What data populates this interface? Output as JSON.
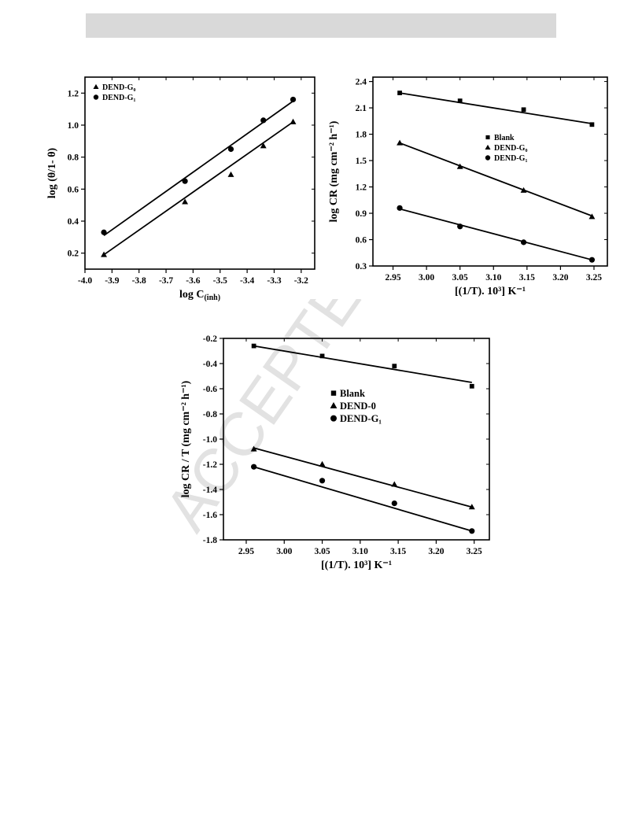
{
  "page": {
    "watermark": "ACCEPTED MANUSCRIPT"
  },
  "chart_data": [
    {
      "type": "scatter",
      "title": "",
      "xlabel_main": "log C",
      "xlabel_sub": "(inh)",
      "ylabel": "log (θ/1- θ)",
      "xlim": [
        -4.0,
        -3.15
      ],
      "ylim": [
        0.1,
        1.3
      ],
      "xticks": [
        -4.0,
        -3.9,
        -3.8,
        -3.7,
        -3.6,
        -3.5,
        -3.4,
        -3.3,
        -3.2
      ],
      "xtick_labels": [
        "-4.0",
        "-3.9",
        "-3.8",
        "-3.7",
        "-3.6",
        "-3.5",
        "-3.4",
        "-3.3",
        "-3.2"
      ],
      "yticks": [
        0.2,
        0.4,
        0.6,
        0.8,
        1.0,
        1.2
      ],
      "ytick_labels": [
        "0.2",
        "0.4",
        "0.6",
        "0.8",
        "1.0",
        "1.2"
      ],
      "legend": "top-left",
      "series": [
        {
          "name": "DEND-G₀",
          "marker": "triangle",
          "x": [
            -3.93,
            -3.63,
            -3.46,
            -3.34,
            -3.23
          ],
          "y": [
            0.19,
            0.52,
            0.69,
            0.87,
            1.02
          ],
          "fit": [
            [
              -3.93,
              0.19
            ],
            [
              -3.23,
              1.02
            ]
          ]
        },
        {
          "name": "DEND-G₁",
          "marker": "circle",
          "x": [
            -3.93,
            -3.63,
            -3.46,
            -3.34,
            -3.23
          ],
          "y": [
            0.33,
            0.65,
            0.85,
            1.03,
            1.16
          ],
          "fit": [
            [
              -3.93,
              0.31
            ],
            [
              -3.23,
              1.15
            ]
          ]
        }
      ]
    },
    {
      "type": "scatter",
      "title": "",
      "xlabel_main": "[(1/T). 10³] K⁻¹",
      "xlabel_sub": "",
      "ylabel": "log CR (mg cm⁻² h⁻¹)",
      "xlim": [
        2.92,
        3.27
      ],
      "ylim": [
        0.3,
        2.45
      ],
      "xticks": [
        2.95,
        3.0,
        3.05,
        3.1,
        3.15,
        3.2,
        3.25
      ],
      "xtick_labels": [
        "2.95",
        "3.00",
        "3.05",
        "3.10",
        "3.15",
        "3.20",
        "3.25"
      ],
      "yticks": [
        0.3,
        0.6,
        0.9,
        1.2,
        1.5,
        1.8,
        2.1,
        2.4
      ],
      "ytick_labels": [
        "0.3",
        "0.6",
        "0.9",
        "1.2",
        "1.5",
        "1.8",
        "2.1",
        "2.4"
      ],
      "legend": "center-right",
      "series": [
        {
          "name": "Blank",
          "marker": "square",
          "x": [
            2.96,
            3.05,
            3.145,
            3.247
          ],
          "y": [
            2.27,
            2.18,
            2.08,
            1.91
          ],
          "fit": [
            [
              2.96,
              2.27
            ],
            [
              3.247,
              1.92
            ]
          ]
        },
        {
          "name": "DEND-G₀",
          "marker": "triangle",
          "x": [
            2.96,
            3.05,
            3.145,
            3.247
          ],
          "y": [
            1.7,
            1.43,
            1.16,
            0.86
          ],
          "fit": [
            [
              2.96,
              1.7
            ],
            [
              3.247,
              0.87
            ]
          ]
        },
        {
          "name": "DEND-G₁",
          "marker": "circle",
          "x": [
            2.96,
            3.05,
            3.145,
            3.247
          ],
          "y": [
            0.96,
            0.75,
            0.57,
            0.37
          ],
          "fit": [
            [
              2.96,
              0.95
            ],
            [
              3.247,
              0.37
            ]
          ]
        }
      ]
    },
    {
      "type": "scatter",
      "title": "",
      "xlabel_main": "[(1/T). 10³] K⁻¹",
      "xlabel_sub": "",
      "ylabel": "log CR / T (mg cm⁻² h⁻¹)",
      "xlim": [
        2.92,
        3.27
      ],
      "ylim": [
        -1.8,
        -0.2
      ],
      "xticks": [
        2.95,
        3.0,
        3.05,
        3.1,
        3.15,
        3.2,
        3.25
      ],
      "xtick_labels": [
        "2.95",
        "3.00",
        "3.05",
        "3.10",
        "3.15",
        "3.20",
        "3.25"
      ],
      "yticks": [
        -1.8,
        -1.6,
        -1.4,
        -1.2,
        -1.0,
        -0.8,
        -0.6,
        -0.4,
        -0.2
      ],
      "ytick_labels": [
        "-1.8",
        "-1.6",
        "-1.4",
        "-1.2",
        "-1.0",
        "-0.8",
        "-0.6",
        "-0.4",
        "-0.2"
      ],
      "legend": "center",
      "series": [
        {
          "name": "Blank",
          "marker": "square",
          "x": [
            2.96,
            3.05,
            3.145,
            3.247
          ],
          "y": [
            -0.26,
            -0.34,
            -0.42,
            -0.58
          ],
          "fit": [
            [
              2.96,
              -0.26
            ],
            [
              3.247,
              -0.55
            ]
          ]
        },
        {
          "name": "DEND-0",
          "marker": "triangle",
          "x": [
            2.96,
            3.05,
            3.145,
            3.247
          ],
          "y": [
            -1.08,
            -1.2,
            -1.36,
            -1.54
          ],
          "fit": [
            [
              2.96,
              -1.07
            ],
            [
              3.247,
              -1.54
            ]
          ]
        },
        {
          "name": "DEND-G₁",
          "marker": "circle",
          "x": [
            2.96,
            3.05,
            3.145,
            3.247
          ],
          "y": [
            -1.22,
            -1.33,
            -1.51,
            -1.73
          ],
          "fit": [
            [
              2.96,
              -1.22
            ],
            [
              3.247,
              -1.73
            ]
          ]
        }
      ]
    }
  ]
}
